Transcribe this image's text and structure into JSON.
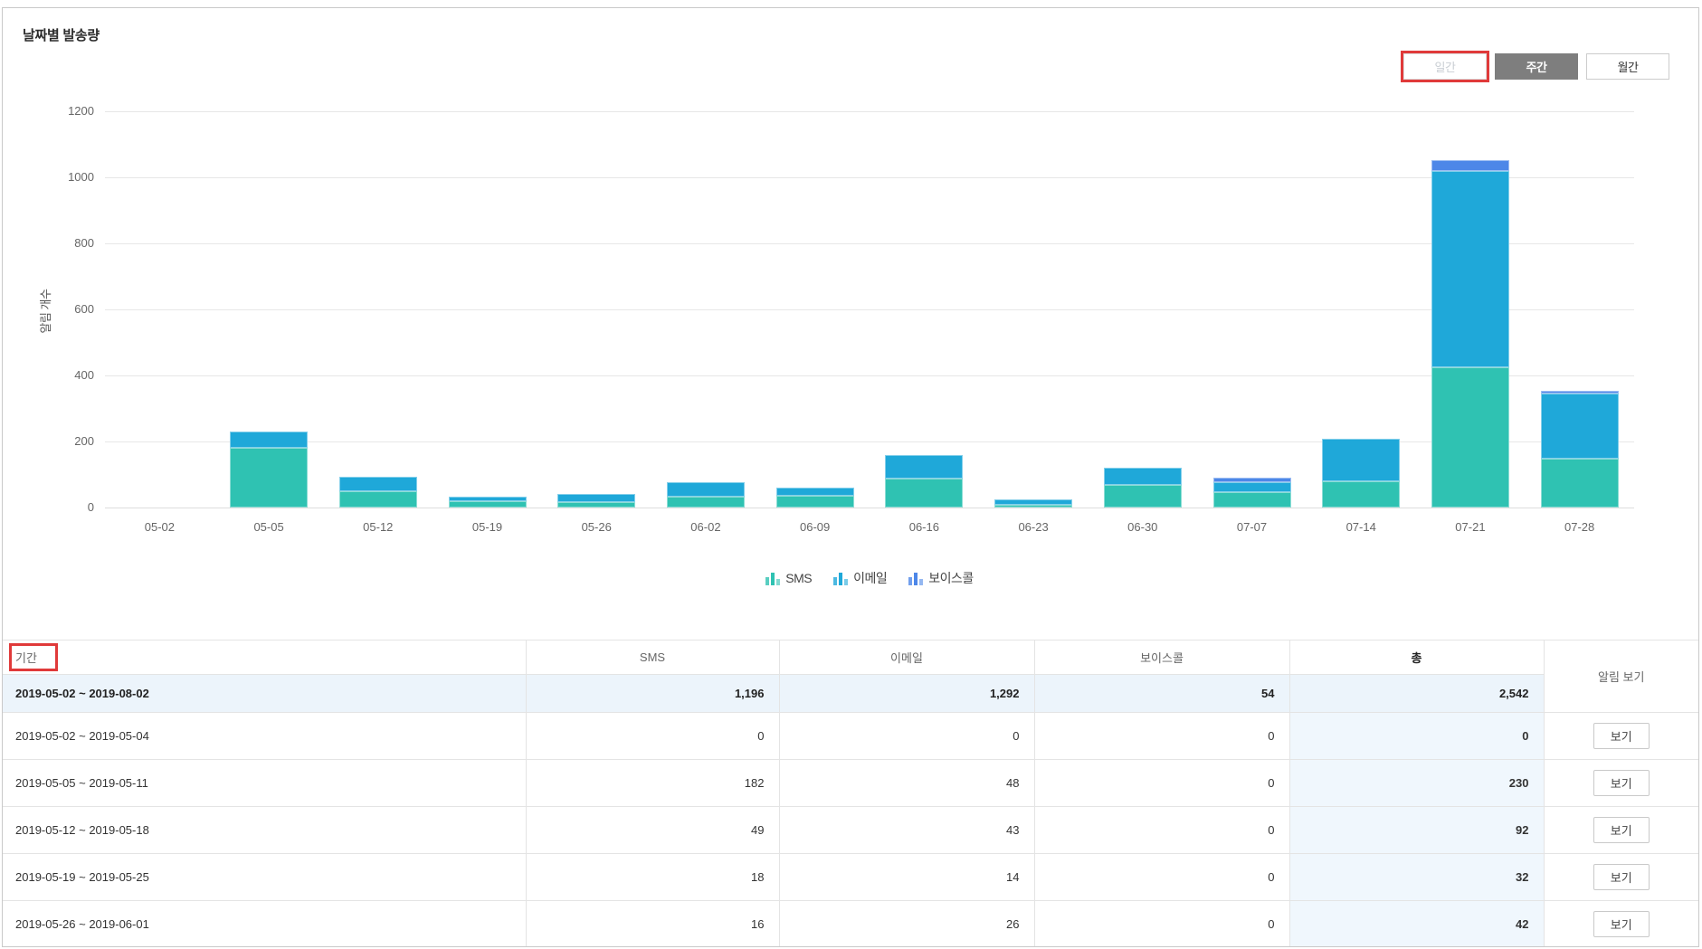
{
  "page": {
    "title": "날짜별 발송량"
  },
  "controls": {
    "buttons": [
      {
        "id": "daily",
        "label": "일간",
        "state": "dimmed",
        "annotated": true
      },
      {
        "id": "weekly",
        "label": "주간",
        "state": "selected",
        "annotated": false
      },
      {
        "id": "monthly",
        "label": "월간",
        "state": "normal",
        "annotated": false
      }
    ]
  },
  "colors": {
    "sms": "#2fc2b2",
    "email": "#1fa8d9",
    "voice": "#4d87e8",
    "annotation_red": "#e03a3a",
    "selected_button_bg": "#7e7e7e",
    "total_row_bg": "#ecf4fb",
    "total_column_bg": "#f0f7fd",
    "gridline": "#e7e7e7"
  },
  "chart_data": {
    "type": "bar",
    "stacked": true,
    "title": "날짜별 발송량",
    "xlabel": "",
    "ylabel": "알림 개수",
    "ylim": [
      0,
      1200
    ],
    "yticks": [
      0,
      200,
      400,
      600,
      800,
      1000,
      1200
    ],
    "grid": true,
    "legend_position": "bottom",
    "categories": [
      "05-02",
      "05-05",
      "05-12",
      "05-19",
      "05-26",
      "06-02",
      "06-09",
      "06-16",
      "06-23",
      "06-30",
      "07-07",
      "07-14",
      "07-21",
      "07-28"
    ],
    "series": [
      {
        "name": "SMS",
        "color": "#2fc2b2",
        "values": [
          0,
          182,
          49,
          18,
          16,
          33,
          36,
          88,
          8,
          68,
          46,
          79,
          424,
          149
        ]
      },
      {
        "name": "이메일",
        "color": "#1fa8d9",
        "values": [
          0,
          48,
          43,
          14,
          26,
          44,
          24,
          72,
          18,
          52,
          30,
          129,
          596,
          196
        ]
      },
      {
        "name": "보이스콜",
        "color": "#4d87e8",
        "values": [
          0,
          0,
          0,
          0,
          0,
          0,
          0,
          0,
          0,
          0,
          14,
          0,
          32,
          8
        ]
      }
    ]
  },
  "table": {
    "headers": {
      "period": "기간",
      "sms": "SMS",
      "email": "이메일",
      "voice": "보이스콜",
      "total": "총",
      "view": "알림 보기"
    },
    "view_button_label": "보기",
    "total_row": {
      "period": "2019-05-02 ~ 2019-08-02",
      "sms": "1,196",
      "email": "1,292",
      "voice": "54",
      "total": "2,542"
    },
    "rows": [
      {
        "period": "2019-05-02 ~ 2019-05-04",
        "sms": "0",
        "email": "0",
        "voice": "0",
        "total": "0"
      },
      {
        "period": "2019-05-05 ~ 2019-05-11",
        "sms": "182",
        "email": "48",
        "voice": "0",
        "total": "230"
      },
      {
        "period": "2019-05-12 ~ 2019-05-18",
        "sms": "49",
        "email": "43",
        "voice": "0",
        "total": "92"
      },
      {
        "period": "2019-05-19 ~ 2019-05-25",
        "sms": "18",
        "email": "14",
        "voice": "0",
        "total": "32"
      },
      {
        "period": "2019-05-26 ~ 2019-06-01",
        "sms": "16",
        "email": "26",
        "voice": "0",
        "total": "42"
      }
    ]
  }
}
